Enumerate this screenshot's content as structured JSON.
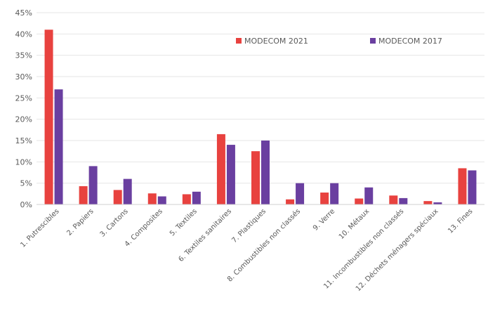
{
  "chart_data": {
    "type": "bar",
    "categories": [
      "1. Putrescibles",
      "2. Papiers",
      "3. Cartons",
      "4. Composites",
      "5. Textiles",
      "6. Textiles sanitaires",
      "7. Plastiques",
      "8. Combustibles non classés",
      "9. Verre",
      "10. Métaux",
      "11. Incombustibles non classés",
      "12. Déchets ménagers spéciaux",
      "13. Fines"
    ],
    "series": [
      {
        "name": "MODECOM 2021",
        "color": "#e8423f",
        "values": [
          41,
          4.3,
          3.4,
          2.6,
          2.4,
          16.5,
          12.5,
          1.2,
          2.8,
          1.4,
          2.1,
          0.8,
          8.5
        ]
      },
      {
        "name": "MODECOM 2017",
        "color": "#6a3fa0",
        "values": [
          27,
          9,
          6,
          1.9,
          3,
          14,
          15,
          5,
          5,
          4,
          1.5,
          0.5,
          8
        ]
      }
    ],
    "ylim": [
      0,
      45
    ],
    "yticks": [
      "0%",
      "5%",
      "10%",
      "15%",
      "20%",
      "25%",
      "30%",
      "35%",
      "40%",
      "45%"
    ],
    "grid": true,
    "legend": "top-right",
    "title": "",
    "xlabel": "",
    "ylabel": ""
  }
}
